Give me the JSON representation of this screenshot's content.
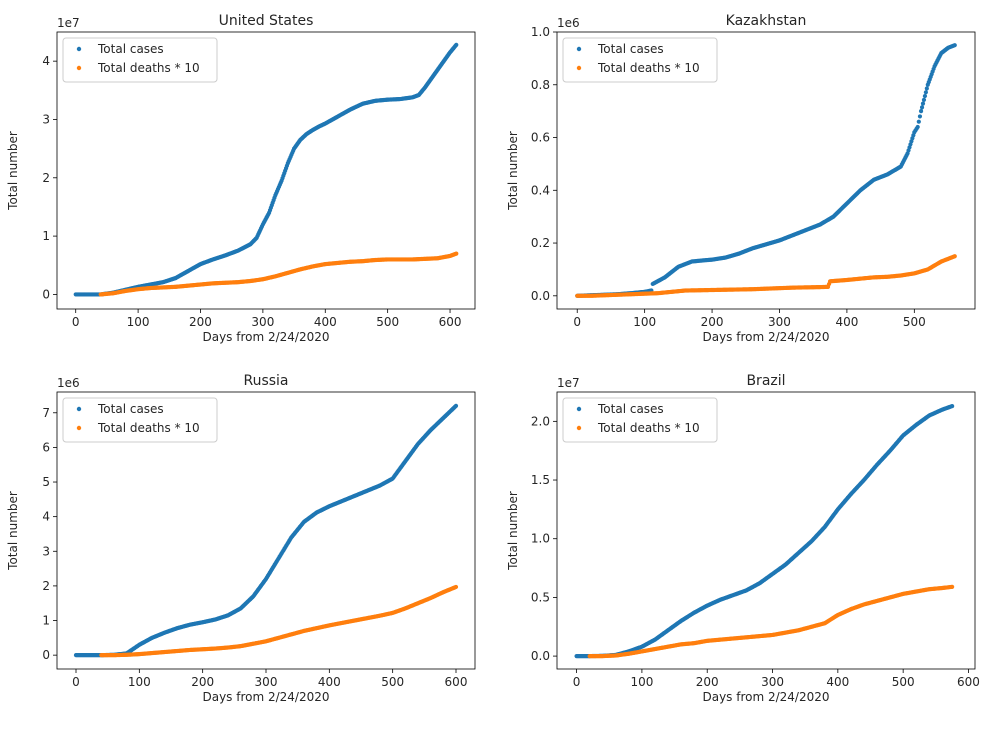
{
  "chart_data": [
    {
      "type": "scatter",
      "title": "United States",
      "xlabel": "Days from 2/24/2020",
      "ylabel": "Total number",
      "y_multiplier_label": "1e7",
      "xlim": [
        -30,
        640
      ],
      "ylim": [
        -0.25,
        4.5
      ],
      "xticks": [
        0,
        100,
        200,
        300,
        400,
        500,
        600
      ],
      "yticks": [
        0,
        1,
        2,
        3,
        4
      ],
      "grid": false,
      "legend_position": "upper-left",
      "series": [
        {
          "name": "Total cases",
          "color": "#1f77b4",
          "x": [
            0,
            40,
            60,
            80,
            100,
            120,
            140,
            160,
            180,
            200,
            220,
            240,
            260,
            280,
            290,
            300,
            310,
            320,
            330,
            340,
            350,
            360,
            370,
            380,
            390,
            400,
            420,
            440,
            460,
            480,
            500,
            520,
            540,
            550,
            560,
            570,
            580,
            590,
            600,
            610
          ],
          "y": [
            0,
            0,
            0.03,
            0.08,
            0.13,
            0.17,
            0.21,
            0.28,
            0.4,
            0.52,
            0.6,
            0.67,
            0.75,
            0.86,
            0.97,
            1.2,
            1.4,
            1.7,
            1.95,
            2.25,
            2.5,
            2.65,
            2.75,
            2.82,
            2.88,
            2.93,
            3.05,
            3.17,
            3.27,
            3.32,
            3.34,
            3.35,
            3.38,
            3.42,
            3.55,
            3.7,
            3.85,
            4.0,
            4.15,
            4.28
          ]
        },
        {
          "name": "Total deaths * 10",
          "color": "#ff7f0e",
          "x": [
            40,
            60,
            80,
            100,
            120,
            140,
            160,
            180,
            200,
            220,
            240,
            260,
            280,
            300,
            320,
            340,
            360,
            380,
            400,
            420,
            440,
            460,
            480,
            500,
            520,
            540,
            560,
            580,
            600,
            610
          ],
          "y": [
            0,
            0.02,
            0.06,
            0.09,
            0.11,
            0.12,
            0.13,
            0.15,
            0.17,
            0.19,
            0.2,
            0.21,
            0.23,
            0.26,
            0.31,
            0.37,
            0.43,
            0.48,
            0.52,
            0.54,
            0.56,
            0.57,
            0.59,
            0.6,
            0.6,
            0.6,
            0.61,
            0.62,
            0.66,
            0.7
          ]
        }
      ]
    },
    {
      "type": "scatter",
      "title": "Kazakhstan",
      "xlabel": "Days from 2/24/2020",
      "ylabel": "Total number",
      "y_multiplier_label": "1e6",
      "xlim": [
        -30,
        590
      ],
      "ylim": [
        -0.05,
        1.0
      ],
      "xticks": [
        0,
        100,
        200,
        300,
        400,
        500
      ],
      "yticks": [
        0.0,
        0.2,
        0.4,
        0.6,
        0.8,
        1.0
      ],
      "grid": false,
      "legend_position": "upper-left",
      "series": [
        {
          "name": "Total cases",
          "color": "#1f77b4",
          "x": [
            0,
            20,
            40,
            60,
            80,
            100,
            110,
            112,
            130,
            150,
            170,
            190,
            200,
            220,
            240,
            260,
            280,
            300,
            320,
            340,
            360,
            380,
            400,
            420,
            440,
            460,
            480,
            490,
            500,
            505,
            510,
            520,
            530,
            540,
            550,
            560
          ],
          "y": [
            0,
            0.002,
            0.004,
            0.006,
            0.01,
            0.015,
            0.02,
            0.045,
            0.07,
            0.11,
            0.13,
            0.135,
            0.137,
            0.145,
            0.16,
            0.18,
            0.195,
            0.21,
            0.23,
            0.25,
            0.27,
            0.3,
            0.35,
            0.4,
            0.44,
            0.46,
            0.49,
            0.54,
            0.62,
            0.64,
            0.7,
            0.8,
            0.87,
            0.92,
            0.94,
            0.95
          ]
        },
        {
          "name": "Total deaths * 10",
          "color": "#ff7f0e",
          "x": [
            0,
            20,
            40,
            60,
            80,
            100,
            120,
            140,
            160,
            180,
            200,
            220,
            240,
            260,
            280,
            300,
            320,
            340,
            360,
            372,
            375,
            400,
            420,
            440,
            460,
            480,
            500,
            520,
            540,
            560
          ],
          "y": [
            0,
            0,
            0.002,
            0.004,
            0.006,
            0.008,
            0.01,
            0.015,
            0.02,
            0.021,
            0.022,
            0.023,
            0.024,
            0.025,
            0.027,
            0.029,
            0.031,
            0.032,
            0.033,
            0.034,
            0.055,
            0.06,
            0.065,
            0.07,
            0.072,
            0.077,
            0.085,
            0.1,
            0.13,
            0.15
          ]
        }
      ]
    },
    {
      "type": "scatter",
      "title": "Russia",
      "xlabel": "Days from 2/24/2020",
      "ylabel": "Total number",
      "y_multiplier_label": "1e6",
      "xlim": [
        -30,
        630
      ],
      "ylim": [
        -0.4,
        7.6
      ],
      "xticks": [
        0,
        100,
        200,
        300,
        400,
        500,
        600
      ],
      "yticks": [
        0,
        1,
        2,
        3,
        4,
        5,
        6,
        7
      ],
      "grid": false,
      "legend_position": "upper-left",
      "series": [
        {
          "name": "Total cases",
          "color": "#1f77b4",
          "x": [
            0,
            40,
            60,
            80,
            100,
            120,
            140,
            160,
            180,
            200,
            220,
            240,
            260,
            280,
            300,
            320,
            340,
            360,
            380,
            400,
            420,
            440,
            460,
            480,
            500,
            520,
            540,
            560,
            580,
            600
          ],
          "y": [
            0,
            0,
            0.01,
            0.05,
            0.3,
            0.5,
            0.65,
            0.78,
            0.88,
            0.95,
            1.03,
            1.15,
            1.35,
            1.7,
            2.2,
            2.8,
            3.4,
            3.85,
            4.12,
            4.3,
            4.45,
            4.6,
            4.75,
            4.9,
            5.1,
            5.6,
            6.1,
            6.5,
            6.85,
            7.2
          ]
        },
        {
          "name": "Total deaths * 10",
          "color": "#ff7f0e",
          "x": [
            40,
            60,
            80,
            100,
            120,
            140,
            160,
            180,
            200,
            220,
            240,
            260,
            280,
            300,
            320,
            340,
            360,
            380,
            400,
            420,
            440,
            460,
            480,
            500,
            520,
            540,
            560,
            580,
            600
          ],
          "y": [
            0,
            0,
            0.01,
            0.03,
            0.06,
            0.09,
            0.12,
            0.15,
            0.17,
            0.19,
            0.22,
            0.26,
            0.33,
            0.4,
            0.5,
            0.6,
            0.7,
            0.78,
            0.86,
            0.93,
            1.0,
            1.07,
            1.14,
            1.22,
            1.35,
            1.5,
            1.65,
            1.82,
            1.97
          ]
        }
      ]
    },
    {
      "type": "scatter",
      "title": "Brazil",
      "xlabel": "Days from 2/24/2020",
      "ylabel": "Total number",
      "y_multiplier_label": "1e7",
      "xlim": [
        -30,
        610
      ],
      "ylim": [
        -0.11,
        2.25
      ],
      "xticks": [
        0,
        100,
        200,
        300,
        400,
        500,
        600
      ],
      "yticks": [
        0.0,
        0.5,
        1.0,
        1.5,
        2.0
      ],
      "grid": false,
      "legend_position": "upper-left",
      "series": [
        {
          "name": "Total cases",
          "color": "#1f77b4",
          "x": [
            0,
            20,
            40,
            60,
            80,
            100,
            120,
            140,
            160,
            180,
            200,
            220,
            240,
            260,
            280,
            300,
            320,
            340,
            360,
            380,
            400,
            420,
            440,
            460,
            480,
            500,
            520,
            540,
            560,
            575
          ],
          "y": [
            0,
            0,
            0.002,
            0.01,
            0.04,
            0.08,
            0.14,
            0.22,
            0.3,
            0.37,
            0.43,
            0.48,
            0.52,
            0.56,
            0.62,
            0.7,
            0.78,
            0.88,
            0.98,
            1.1,
            1.25,
            1.38,
            1.5,
            1.63,
            1.75,
            1.88,
            1.97,
            2.05,
            2.1,
            2.13
          ]
        },
        {
          "name": "Total deaths * 10",
          "color": "#ff7f0e",
          "x": [
            20,
            40,
            60,
            80,
            100,
            120,
            140,
            160,
            180,
            200,
            220,
            240,
            260,
            280,
            300,
            320,
            340,
            360,
            380,
            400,
            420,
            440,
            460,
            480,
            500,
            520,
            540,
            560,
            575
          ],
          "y": [
            0,
            0,
            0.005,
            0.02,
            0.04,
            0.06,
            0.08,
            0.1,
            0.11,
            0.13,
            0.14,
            0.15,
            0.16,
            0.17,
            0.18,
            0.2,
            0.22,
            0.25,
            0.28,
            0.35,
            0.4,
            0.44,
            0.47,
            0.5,
            0.53,
            0.55,
            0.57,
            0.58,
            0.59
          ]
        }
      ]
    }
  ]
}
